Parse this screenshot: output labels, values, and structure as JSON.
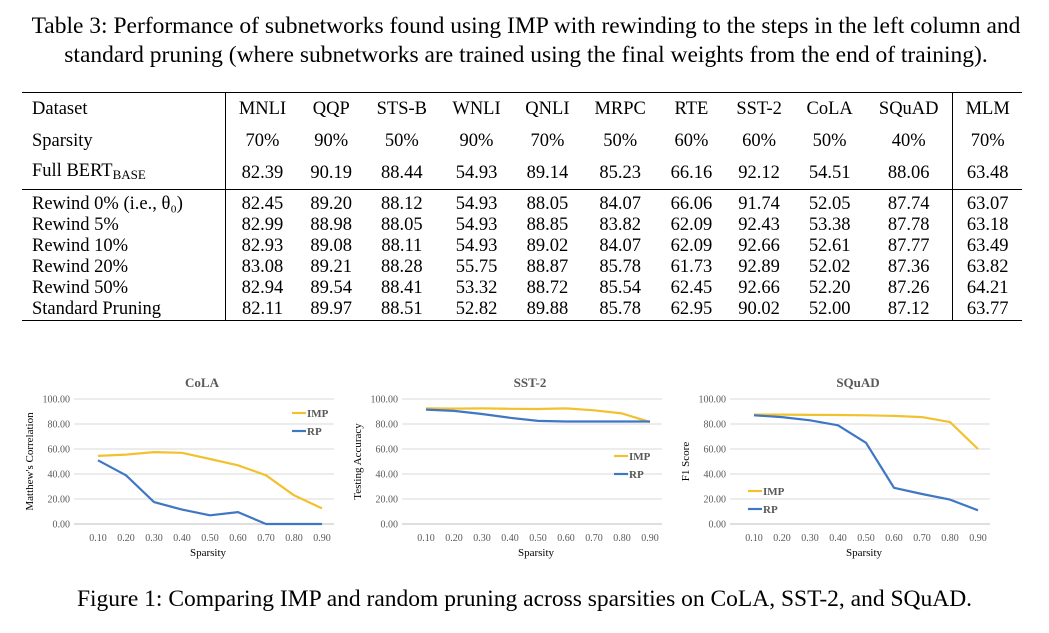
{
  "table": {
    "caption": "Table 3: Performance of subnetworks found using IMP with rewinding to the steps in the left column and standard pruning (where subnetworks are trained using the final weights from the end of training).",
    "header": [
      "Dataset",
      "MNLI",
      "QQP",
      "STS-B",
      "WNLI",
      "QNLI",
      "MRPC",
      "RTE",
      "SST-2",
      "CoLA",
      "SQuAD",
      "MLM"
    ],
    "sparsity": {
      "label": "Sparsity",
      "values": [
        "70%",
        "90%",
        "50%",
        "90%",
        "70%",
        "50%",
        "60%",
        "60%",
        "50%",
        "40%",
        "70%"
      ]
    },
    "full": {
      "label": "Full BERT",
      "label_sub": "BASE",
      "values": [
        "82.39",
        "90.19",
        "88.44",
        "54.93",
        "89.14",
        "85.23",
        "66.16",
        "92.12",
        "54.51",
        "88.06",
        "63.48"
      ]
    },
    "rows": [
      {
        "label": "Rewind 0% (i.e., θ₀)",
        "values": [
          "82.45",
          "89.20",
          "88.12",
          "54.93",
          "88.05",
          "84.07",
          "66.06",
          "91.74",
          "52.05",
          "87.74",
          "63.07"
        ]
      },
      {
        "label": "Rewind 5%",
        "values": [
          "82.99",
          "88.98",
          "88.05",
          "54.93",
          "88.85",
          "83.82",
          "62.09",
          "92.43",
          "53.38",
          "87.78",
          "63.18"
        ]
      },
      {
        "label": "Rewind 10%",
        "values": [
          "82.93",
          "89.08",
          "88.11",
          "54.93",
          "89.02",
          "84.07",
          "62.09",
          "92.66",
          "52.61",
          "87.77",
          "63.49"
        ]
      },
      {
        "label": "Rewind 20%",
        "values": [
          "83.08",
          "89.21",
          "88.28",
          "55.75",
          "88.87",
          "85.78",
          "61.73",
          "92.89",
          "52.02",
          "87.36",
          "63.82"
        ]
      },
      {
        "label": "Rewind 50%",
        "values": [
          "82.94",
          "89.54",
          "88.41",
          "53.32",
          "88.72",
          "85.54",
          "62.45",
          "92.66",
          "52.20",
          "87.26",
          "64.21"
        ]
      },
      {
        "label": "Standard Pruning",
        "values": [
          "82.11",
          "89.97",
          "88.51",
          "52.82",
          "89.88",
          "85.78",
          "62.95",
          "90.02",
          "52.00",
          "87.12",
          "63.77"
        ]
      }
    ]
  },
  "figure": {
    "caption": "Figure 1: Comparing IMP and random pruning across sparsities on CoLA, SST-2, and SQuAD."
  },
  "colors": {
    "imp": "#f2c12e",
    "rp": "#3f77c5",
    "grid": "#d9d9d9",
    "axis_text": "#595959"
  },
  "chart_data": [
    {
      "type": "line",
      "title": "CoLA",
      "xlabel": "Sparsity",
      "ylabel": "Matthew's Correlation",
      "x": [
        0.1,
        0.2,
        0.3,
        0.4,
        0.5,
        0.6,
        0.7,
        0.8,
        0.9
      ],
      "xticks": [
        "0.10",
        "0.20",
        "0.30",
        "0.40",
        "0.50",
        "0.60",
        "0.70",
        "0.80",
        "0.90"
      ],
      "yticks": [
        "0.00",
        "20.00",
        "40.00",
        "60.00",
        "80.00",
        "100.00"
      ],
      "ylim": [
        0,
        100
      ],
      "grid": true,
      "legend_position": "top-right",
      "series": [
        {
          "name": "IMP",
          "values": [
            54.5,
            55.5,
            57.5,
            57,
            52,
            47,
            39,
            23,
            12.5
          ]
        },
        {
          "name": "RP",
          "values": [
            51,
            39,
            17.5,
            11.5,
            7,
            9.5,
            0,
            0,
            0
          ]
        }
      ]
    },
    {
      "type": "line",
      "title": "SST-2",
      "xlabel": "Sparsity",
      "ylabel": "Testing Accuracy",
      "x": [
        0.1,
        0.2,
        0.3,
        0.4,
        0.5,
        0.6,
        0.7,
        0.8,
        0.9
      ],
      "xticks": [
        "0.10",
        "0.20",
        "0.30",
        "0.40",
        "0.50",
        "0.60",
        "0.70",
        "0.80",
        "0.90"
      ],
      "yticks": [
        "0.00",
        "20.00",
        "40.00",
        "60.00",
        "80.00",
        "100.00"
      ],
      "ylim": [
        0,
        100
      ],
      "grid": true,
      "legend_position": "center-right",
      "series": [
        {
          "name": "IMP",
          "values": [
            92.5,
            92.3,
            92.5,
            92.2,
            92,
            92.5,
            91,
            88.5,
            81.5
          ]
        },
        {
          "name": "RP",
          "values": [
            91.5,
            90.5,
            88,
            85,
            82.5,
            82,
            82,
            82,
            82
          ]
        }
      ]
    },
    {
      "type": "line",
      "title": "SQuAD",
      "xlabel": "Sparsity",
      "ylabel": "F1 Score",
      "x": [
        0.1,
        0.2,
        0.3,
        0.4,
        0.5,
        0.6,
        0.7,
        0.8,
        0.9
      ],
      "xticks": [
        "0.10",
        "0.20",
        "0.30",
        "0.40",
        "0.50",
        "0.60",
        "0.70",
        "0.80",
        "0.90"
      ],
      "yticks": [
        "0.00",
        "20.00",
        "40.00",
        "60.00",
        "80.00",
        "100.00"
      ],
      "ylim": [
        0,
        100
      ],
      "grid": true,
      "legend_position": "bottom-left",
      "series": [
        {
          "name": "IMP",
          "values": [
            87.5,
            87.5,
            87.3,
            87.2,
            87,
            86.5,
            85.5,
            81.5,
            60
          ]
        },
        {
          "name": "RP",
          "values": [
            87,
            85.5,
            83,
            79,
            65,
            29,
            24,
            19.5,
            11
          ]
        }
      ]
    }
  ]
}
